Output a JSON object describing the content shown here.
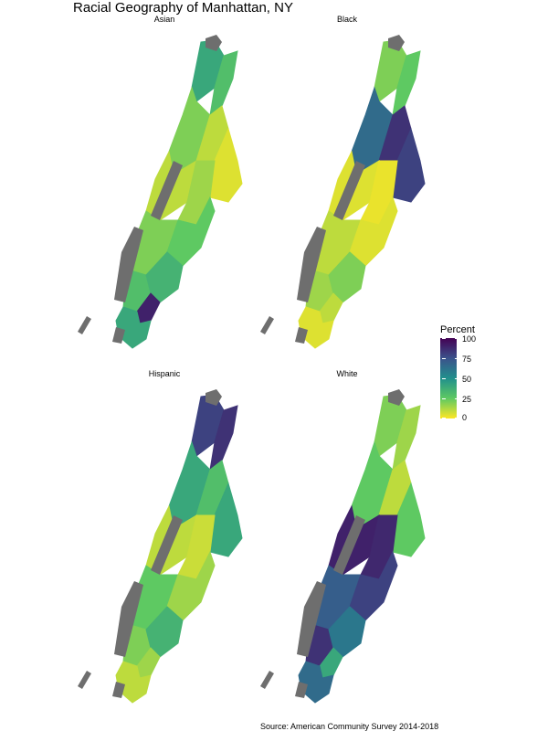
{
  "title": "Racial Geography of Manhattan, NY",
  "source": "Source: American Community Survey 2014-2018",
  "legend": {
    "title": "Percent",
    "ticks": [
      "100",
      "75",
      "50",
      "25",
      "0"
    ]
  },
  "color_scale": {
    "name": "viridis (reversed)",
    "stops": [
      "#fde725",
      "#5ec962",
      "#21908c",
      "#3b528b",
      "#440154"
    ],
    "missing": "#6e6e6e"
  },
  "panels": [
    {
      "label": "Asian",
      "zones": {
        "uptown_west": 40,
        "uptown_east": 30,
        "harlem_west": 20,
        "harlem_east": 10,
        "east_harlem": 5,
        "upper_west": 10,
        "upper_east": 15,
        "midtown_west": 20,
        "midtown_east": 25,
        "lower_west": 30,
        "lower_east": 35,
        "chinatown": 90,
        "downtown": 40
      }
    },
    {
      "label": "Black",
      "zones": {
        "uptown_west": 20,
        "uptown_east": 25,
        "harlem_west": 65,
        "harlem_east": 85,
        "east_harlem": 80,
        "upper_west": 5,
        "upper_east": 3,
        "midtown_west": 10,
        "midtown_east": 5,
        "lower_west": 15,
        "lower_east": 20,
        "chinatown": 10,
        "downtown": 5
      }
    },
    {
      "label": "Hispanic",
      "zones": {
        "uptown_west": 80,
        "uptown_east": 85,
        "harlem_west": 40,
        "harlem_east": 30,
        "east_harlem": 40,
        "upper_west": 10,
        "upper_east": 8,
        "midtown_west": 25,
        "midtown_east": 15,
        "lower_west": 20,
        "lower_east": 35,
        "chinatown": 15,
        "downtown": 10
      }
    },
    {
      "label": "White",
      "zones": {
        "uptown_west": 20,
        "uptown_east": 15,
        "harlem_west": 25,
        "harlem_east": 10,
        "east_harlem": 25,
        "upper_west": 90,
        "upper_east": 88,
        "midtown_west": 70,
        "midtown_east": 80,
        "lower_west": 85,
        "lower_east": 60,
        "chinatown": 40,
        "downtown": 65
      }
    }
  ]
}
